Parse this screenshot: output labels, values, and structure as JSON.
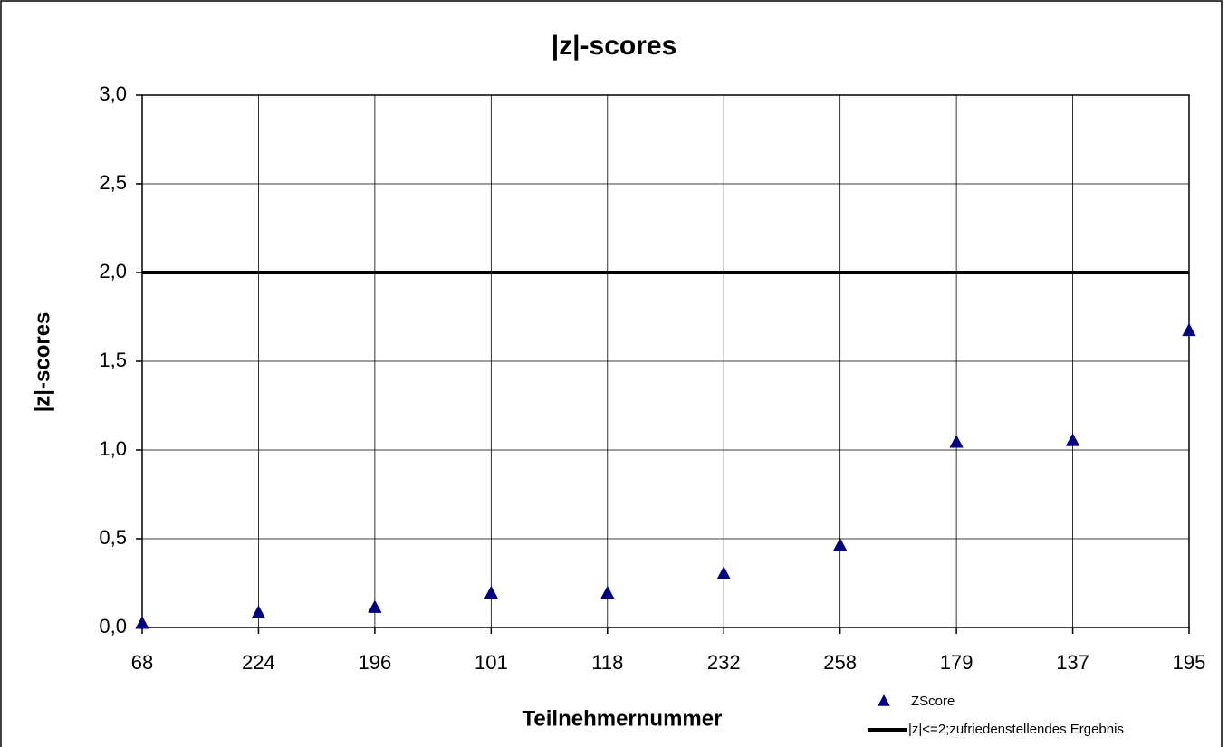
{
  "chart_data": {
    "type": "line",
    "title": "|z|-scores",
    "x_label": "Teilnehmernummer",
    "y_label": "|z|-scores",
    "categories": [
      "68",
      "224",
      "196",
      "101",
      "118",
      "232",
      "258",
      "179",
      "137",
      "195"
    ],
    "series": [
      {
        "name": "ZScore",
        "color": "#000080",
        "style": "markers",
        "values": [
          0.02,
          0.08,
          0.11,
          0.19,
          0.19,
          0.3,
          0.46,
          1.04,
          1.05,
          1.67
        ]
      },
      {
        "name": "|z|<=2;zufriedenstellendes Ergebnis",
        "color": "#000000",
        "style": "line",
        "values": [
          2,
          2,
          2,
          2,
          2,
          2,
          2,
          2,
          2,
          2
        ]
      }
    ],
    "ylim": [
      0,
      3
    ],
    "yticks": [
      {
        "value": 0,
        "label": "0,0"
      },
      {
        "value": 0.5,
        "label": "0,5"
      },
      {
        "value": 1,
        "label": "1,0"
      },
      {
        "value": 1.5,
        "label": "1,5"
      },
      {
        "value": 2,
        "label": "2,0"
      },
      {
        "value": 2.5,
        "label": "2,5"
      },
      {
        "value": 3,
        "label": "3,0"
      }
    ],
    "grid": true,
    "legend": "bottom-right"
  }
}
